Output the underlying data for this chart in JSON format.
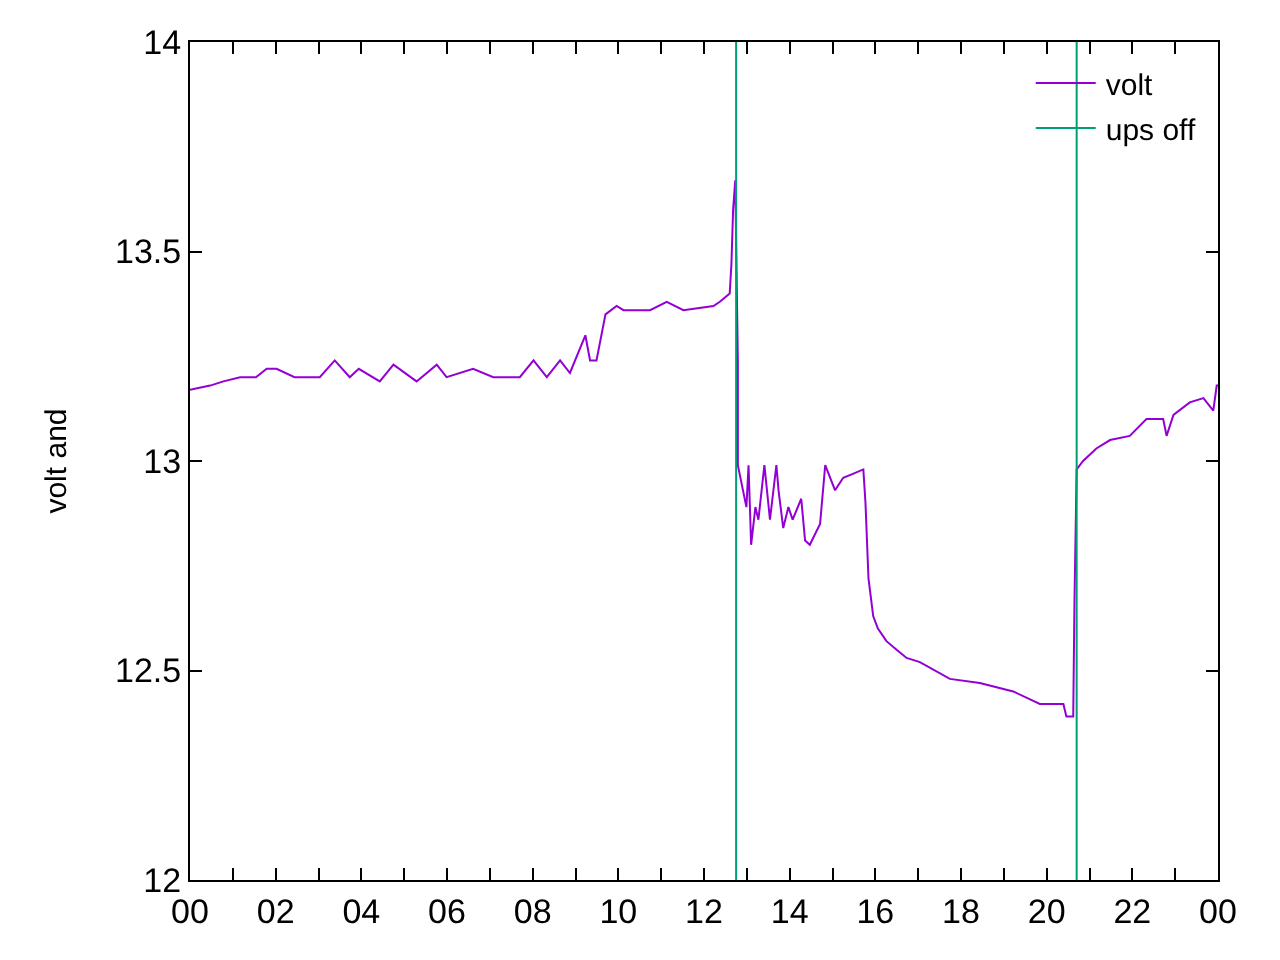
{
  "chart_data": {
    "type": "line",
    "ylabel": "volt and",
    "xlim": [
      0,
      24
    ],
    "ylim": [
      12,
      14
    ],
    "xticks": [
      {
        "value": 0,
        "label": "00"
      },
      {
        "value": 1,
        "label": null
      },
      {
        "value": 2,
        "label": "02"
      },
      {
        "value": 3,
        "label": null
      },
      {
        "value": 4,
        "label": "04"
      },
      {
        "value": 5,
        "label": null
      },
      {
        "value": 6,
        "label": "06"
      },
      {
        "value": 7,
        "label": null
      },
      {
        "value": 8,
        "label": "08"
      },
      {
        "value": 9,
        "label": null
      },
      {
        "value": 10,
        "label": "10"
      },
      {
        "value": 11,
        "label": null
      },
      {
        "value": 12,
        "label": "12"
      },
      {
        "value": 13,
        "label": null
      },
      {
        "value": 14,
        "label": "14"
      },
      {
        "value": 15,
        "label": null
      },
      {
        "value": 16,
        "label": "16"
      },
      {
        "value": 17,
        "label": null
      },
      {
        "value": 18,
        "label": "18"
      },
      {
        "value": 19,
        "label": null
      },
      {
        "value": 20,
        "label": "20"
      },
      {
        "value": 21,
        "label": null
      },
      {
        "value": 22,
        "label": "22"
      },
      {
        "value": 23,
        "label": null
      },
      {
        "value": 24,
        "label": "00"
      }
    ],
    "yticks": [
      12,
      12.5,
      13,
      13.5,
      14
    ],
    "legend": "top right",
    "marker": "none",
    "line_style": "solid",
    "series": [
      {
        "name": "volt",
        "color": "#9400d3",
        "x": [
          0,
          0.47,
          0.78,
          1.17,
          1.54,
          1.79,
          2.02,
          2.44,
          3.03,
          3.38,
          3.73,
          3.94,
          4.43,
          4.75,
          5.29,
          5.76,
          5.99,
          6.61,
          7.08,
          7.7,
          8.02,
          8.33,
          8.64,
          8.87,
          9.23,
          9.34,
          9.49,
          9.7,
          9.96,
          10.12,
          10.74,
          11.13,
          11.52,
          12.22,
          12.37,
          12.6,
          12.64,
          12.68,
          12.73,
          12.79,
          12.79,
          12.99,
          13.04,
          13.1,
          13.2,
          13.27,
          13.41,
          13.54,
          13.69,
          13.74,
          13.85,
          13.97,
          14.07,
          14.27,
          14.36,
          14.47,
          14.71,
          14.83,
          15.06,
          15.25,
          15.49,
          15.72,
          15.77,
          15.84,
          15.95,
          16.06,
          16.26,
          16.49,
          16.73,
          17.04,
          17.74,
          18.44,
          19.22,
          19.84,
          20.39,
          20.46,
          20.62,
          20.65,
          20.7,
          20.85,
          21.16,
          21.48,
          21.94,
          22.33,
          22.72,
          22.8,
          22.96,
          23.34,
          23.66,
          23.89,
          23.97,
          24
        ],
        "values": [
          13.17,
          13.18,
          13.19,
          13.2,
          13.2,
          13.22,
          13.22,
          13.2,
          13.2,
          13.24,
          13.2,
          13.22,
          13.19,
          13.23,
          13.19,
          13.23,
          13.2,
          13.22,
          13.2,
          13.2,
          13.24,
          13.2,
          13.24,
          13.21,
          13.3,
          13.24,
          13.24,
          13.35,
          13.37,
          13.36,
          13.36,
          13.38,
          13.36,
          13.37,
          13.38,
          13.4,
          13.47,
          13.6,
          13.67,
          13.24,
          12.99,
          12.89,
          12.99,
          12.8,
          12.89,
          12.86,
          12.99,
          12.86,
          12.99,
          12.93,
          12.84,
          12.89,
          12.86,
          12.91,
          12.81,
          12.8,
          12.85,
          12.99,
          12.93,
          12.96,
          12.97,
          12.98,
          12.9,
          12.72,
          12.63,
          12.6,
          12.57,
          12.55,
          12.53,
          12.52,
          12.48,
          12.47,
          12.45,
          12.42,
          12.42,
          12.39,
          12.39,
          12.67,
          12.98,
          13,
          13.03,
          13.05,
          13.06,
          13.1,
          13.1,
          13.06,
          13.11,
          13.14,
          13.15,
          13.12,
          13.18,
          13.18
        ]
      },
      {
        "name": "ups off",
        "color": "#009e73",
        "x": [
          12.75,
          12.75,
          null,
          20.7,
          20.7
        ],
        "values": [
          12,
          14,
          null,
          12,
          14
        ]
      }
    ]
  }
}
